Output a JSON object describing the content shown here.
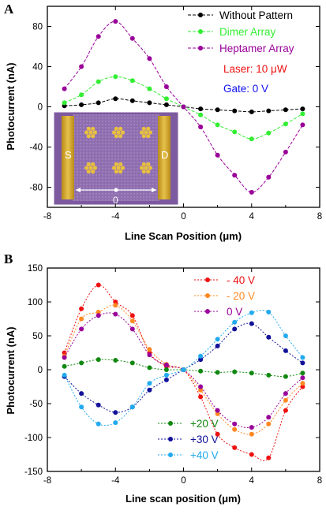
{
  "chart_data": [
    {
      "panel_label": "A",
      "type": "line",
      "xlabel": "Line Scan Position (μm)",
      "ylabel": "Photocurrent (nA)",
      "xlim": [
        -8,
        8
      ],
      "ylim": [
        -100,
        100
      ],
      "xticks": [
        -8,
        -4,
        0,
        4,
        8
      ],
      "yticks": [
        -80,
        -40,
        0,
        40,
        80
      ],
      "grid": false,
      "legend_position": "top-right",
      "series": [
        {
          "name": "Without Pattern",
          "color": "#000000",
          "x": [
            -7,
            -6,
            -5,
            -4,
            -3,
            -2,
            -1,
            0,
            1,
            2,
            3,
            4,
            5,
            6,
            7
          ],
          "y": [
            1,
            2,
            4,
            8,
            6,
            4,
            2,
            0,
            -2,
            -3,
            -4,
            -5,
            -4,
            -3,
            -2
          ]
        },
        {
          "name": "Dimer Array",
          "color": "#33ee33",
          "x": [
            -7,
            -6,
            -5,
            -4,
            -3,
            -2,
            -1,
            0,
            1,
            2,
            3,
            4,
            5,
            6,
            7
          ],
          "y": [
            4,
            12,
            25,
            30,
            26,
            18,
            8,
            0,
            -8,
            -18,
            -25,
            -32,
            -26,
            -17,
            -7
          ]
        },
        {
          "name": "Heptamer Array",
          "color": "#990099",
          "x": [
            -7,
            -6,
            -5,
            -4,
            -3,
            -2,
            -1,
            0,
            1,
            2,
            3,
            4,
            5,
            6,
            7
          ],
          "y": [
            18,
            40,
            70,
            85,
            68,
            48,
            20,
            0,
            -20,
            -48,
            -68,
            -85,
            -70,
            -45,
            -18
          ]
        }
      ],
      "annotations": [
        {
          "text": "Laser: 10 μW",
          "color": "#ee1111"
        },
        {
          "text": "Gate: 0 V",
          "color": "#1111ee"
        }
      ],
      "inset_labels": {
        "source": "S",
        "drain": "D",
        "origin": "0"
      }
    },
    {
      "panel_label": "B",
      "type": "line",
      "xlabel": "Line scan position (μm)",
      "ylabel": "Photocurrent (nA)",
      "xlim": [
        -8,
        8
      ],
      "ylim": [
        -150,
        150
      ],
      "xticks": [
        -8,
        -4,
        0,
        4,
        8
      ],
      "yticks": [
        -150,
        -100,
        -50,
        0,
        50,
        100,
        150
      ],
      "grid": false,
      "series": [
        {
          "name": "- 40 V",
          "color": "#ee1111",
          "x": [
            -7,
            -6,
            -5,
            -4,
            -3,
            -2,
            -1,
            0,
            1,
            2,
            3,
            4,
            5,
            6,
            7
          ],
          "y": [
            25,
            90,
            125,
            100,
            80,
            25,
            5,
            0,
            -40,
            -95,
            -115,
            -125,
            -130,
            -60,
            -25
          ]
        },
        {
          "name": "- 20 V",
          "color": "#ff8822",
          "x": [
            -7,
            -6,
            -5,
            -4,
            -3,
            -2,
            -1,
            0,
            1,
            2,
            3,
            4,
            5,
            6,
            7
          ],
          "y": [
            20,
            75,
            85,
            95,
            72,
            30,
            8,
            0,
            -30,
            -65,
            -88,
            -95,
            -80,
            -45,
            -20
          ]
        },
        {
          "name": "0 V",
          "color": "#990099",
          "x": [
            -7,
            -6,
            -5,
            -4,
            -3,
            -2,
            -1,
            0,
            1,
            2,
            3,
            4,
            5,
            6,
            7
          ],
          "y": [
            18,
            60,
            80,
            82,
            60,
            22,
            7,
            0,
            -25,
            -60,
            -80,
            -85,
            -70,
            -35,
            -12
          ]
        },
        {
          "name": "+20 V",
          "color": "#118811",
          "x": [
            -7,
            -6,
            -5,
            -4,
            -3,
            -2,
            -1,
            0,
            1,
            2,
            3,
            4,
            5,
            6,
            7
          ],
          "y": [
            5,
            10,
            15,
            14,
            10,
            3,
            0,
            0,
            -2,
            -4,
            -3,
            -5,
            -8,
            -10,
            -5
          ]
        },
        {
          "name": "+30 V",
          "color": "#111199",
          "x": [
            -7,
            -6,
            -5,
            -4,
            -3,
            -2,
            -1,
            0,
            1,
            2,
            3,
            4,
            5,
            6,
            7
          ],
          "y": [
            -10,
            -35,
            -52,
            -63,
            -55,
            -30,
            -15,
            0,
            15,
            35,
            60,
            68,
            48,
            28,
            10
          ]
        },
        {
          "name": "+40 V",
          "color": "#22aaee",
          "x": [
            -7,
            -6,
            -5,
            -4,
            -3,
            -2,
            -1,
            0,
            1,
            2,
            3,
            4,
            5,
            6,
            7
          ],
          "y": [
            -8,
            -55,
            -80,
            -78,
            -55,
            -20,
            -8,
            0,
            20,
            45,
            70,
            84,
            85,
            50,
            18
          ]
        }
      ]
    }
  ]
}
